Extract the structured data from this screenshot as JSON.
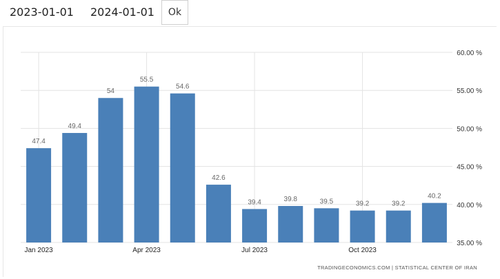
{
  "controls": {
    "start_date": "2023-01-01",
    "end_date": "2024-01-01",
    "ok_label": "Ok"
  },
  "credit": "TRADINGECONOMICS.COM  |  STATISTICAL CENTER OF IRAN",
  "chart_data": {
    "type": "bar",
    "title": "",
    "xlabel": "",
    "ylabel": "",
    "categories": [
      "2023-01",
      "2023-02",
      "2023-03",
      "2023-04",
      "2023-05",
      "2023-06",
      "2023-07",
      "2023-08",
      "2023-09",
      "2023-10",
      "2023-11",
      "2023-12"
    ],
    "values": [
      47.4,
      49.4,
      54,
      55.5,
      54.6,
      42.6,
      39.4,
      39.8,
      39.5,
      39.2,
      39.2,
      40.2
    ],
    "value_labels": [
      "47.4",
      "49.4",
      "54",
      "55.5",
      "54.6",
      "42.6",
      "39.4",
      "39.8",
      "39.5",
      "39.2",
      "39.2",
      "40.2"
    ],
    "ylim": [
      35,
      60
    ],
    "y_ticks": [
      35,
      40,
      45,
      50,
      55,
      60
    ],
    "y_tick_labels": [
      "35.00 %",
      "40.00 %",
      "45.00 %",
      "50.00 %",
      "55.00 %",
      "60.00 %"
    ],
    "y_axis_side": "right",
    "x_tick_labels": [
      {
        "index": 0,
        "label": "Jan 2023"
      },
      {
        "index": 3,
        "label": "Apr 2023"
      },
      {
        "index": 6,
        "label": "Jul 2023"
      },
      {
        "index": 9,
        "label": "Oct 2023"
      }
    ],
    "bar_color": "#4a80b8",
    "grid": true,
    "legend": "none"
  }
}
